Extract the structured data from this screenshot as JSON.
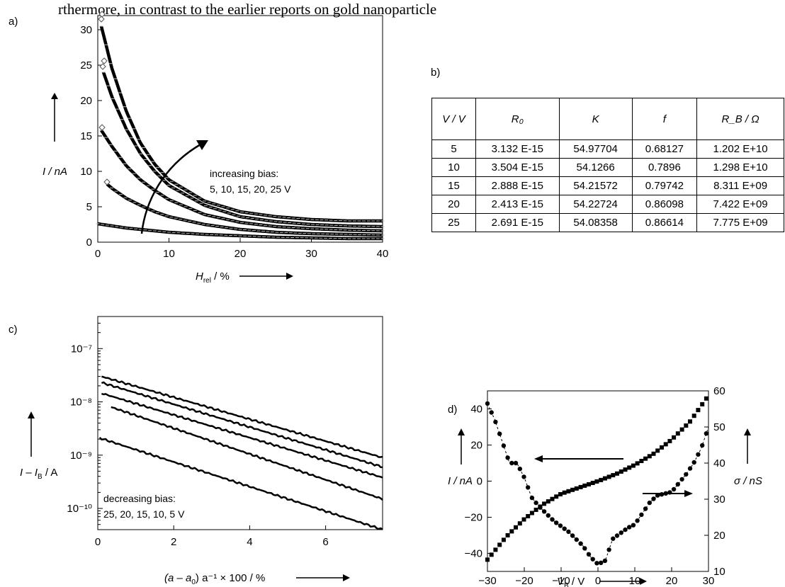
{
  "caption_fragment": "rthermore, in contrast to the earlier reports on gold nanoparticle",
  "panels": {
    "a": {
      "label": "a)",
      "annotation_line1": "increasing bias:",
      "annotation_line2": "5, 10, 15, 20, 25 V",
      "ylabel": "I / nA",
      "xlabel": "H",
      "xlabel_sub": "rel",
      "xlabel_unit": " / %"
    },
    "b": {
      "label": "b)"
    },
    "c": {
      "label": "c)",
      "annotation_line1": "decreasing bias:",
      "annotation_line2": "25, 20, 15, 10, 5 V",
      "ylabel": "I – I",
      "ylabel_sub": "B",
      "ylabel_unit": " / A",
      "xlabel": "(a – a",
      "xlabel_sub": "0",
      "xlabel_unit": ") a⁻¹ × 100 / %"
    },
    "d": {
      "label": "d)",
      "ylabel_left": "I / nA",
      "ylabel_right": "σ / nS",
      "xlabel": "V",
      "xlabel_sub": "B",
      "xlabel_unit": " / V"
    }
  },
  "table": {
    "headers": [
      "V / V",
      "R₀",
      "K",
      "f",
      "R_B / Ω"
    ],
    "rows": [
      [
        "5",
        "3.132 E-15",
        "54.97704",
        "0.68127",
        "1.202 E+10"
      ],
      [
        "10",
        "3.504 E-15",
        "54.1266",
        "0.7896",
        "1.298 E+10"
      ],
      [
        "15",
        "2.888 E-15",
        "54.21572",
        "0.79742",
        "8.311 E+09"
      ],
      [
        "20",
        "2.413 E-15",
        "54.22724",
        "0.86098",
        "7.422 E+09"
      ],
      [
        "25",
        "2.691 E-15",
        "54.08358",
        "0.86614",
        "7.775 E+09"
      ]
    ]
  },
  "chart_data": [
    {
      "type": "line",
      "panel": "a",
      "xlabel": "Hrel / %",
      "ylabel": "I / nA",
      "xlim": [
        0,
        40
      ],
      "ylim": [
        0,
        32
      ],
      "xticks": [
        0,
        10,
        20,
        30,
        40
      ],
      "yticks": [
        0,
        5,
        10,
        15,
        20,
        25,
        30
      ],
      "series": [
        {
          "x": [
            0.5,
            2,
            4,
            6,
            8,
            10,
            15,
            20,
            25,
            30,
            35,
            40
          ],
          "y": [
            30.5,
            24.5,
            18.5,
            14.0,
            11.0,
            8.8,
            5.8,
            4.3,
            3.6,
            3.2,
            3.0,
            3.0
          ]
        },
        {
          "x": [
            0.8,
            2,
            4,
            6,
            8,
            10,
            15,
            20,
            25,
            30,
            35,
            40
          ],
          "y": [
            24.0,
            20.5,
            16.0,
            12.5,
            10.0,
            8.0,
            5.2,
            3.6,
            2.9,
            2.5,
            2.3,
            2.2
          ]
        },
        {
          "x": [
            0.5,
            2,
            4,
            6,
            8,
            10,
            15,
            20,
            25,
            30,
            35,
            40
          ],
          "y": [
            15.8,
            13.5,
            10.8,
            8.8,
            7.3,
            6.0,
            3.9,
            2.8,
            2.2,
            1.9,
            1.7,
            1.6
          ]
        },
        {
          "x": [
            1.3,
            2,
            4,
            6,
            8,
            10,
            15,
            20,
            25,
            30,
            35,
            40
          ],
          "y": [
            8.2,
            7.6,
            6.2,
            5.2,
            4.3,
            3.6,
            2.5,
            1.8,
            1.4,
            1.2,
            1.1,
            1.0
          ]
        },
        {
          "x": [
            0,
            2,
            4,
            6,
            8,
            10,
            15,
            20,
            25,
            30,
            35,
            40
          ],
          "y": [
            2.6,
            2.3,
            2.0,
            1.8,
            1.6,
            1.4,
            1.1,
            0.9,
            0.7,
            0.6,
            0.5,
            0.5
          ]
        }
      ],
      "markers": [
        {
          "x": 0.5,
          "y": 31.5
        },
        {
          "x": 0.6,
          "y": 32.2
        },
        {
          "x": 0.7,
          "y": 24.8
        },
        {
          "x": 0.9,
          "y": 25.6
        },
        {
          "x": 0.6,
          "y": 16.2
        },
        {
          "x": 1.3,
          "y": 8.5
        }
      ],
      "annotation": "increasing bias: 5, 10, 15, 20, 25 V"
    },
    {
      "type": "line",
      "panel": "c",
      "xlabel": "(a – a0) a⁻¹ × 100 / %",
      "ylabel": "I – IB / A",
      "xlim": [
        0,
        7.5
      ],
      "ylog": true,
      "ylim": [
        4e-11,
        4e-07
      ],
      "xticks": [
        0,
        2,
        4,
        6
      ],
      "yticks": [
        "10⁻¹⁰",
        "10⁻⁹",
        "10⁻⁸",
        "10⁻⁷"
      ],
      "series": [
        {
          "x": [
            0.1,
            7.5
          ],
          "y": [
            3e-08,
            9e-10
          ]
        },
        {
          "x": [
            0.1,
            7.5
          ],
          "y": [
            2.3e-08,
            6e-10
          ]
        },
        {
          "x": [
            0.1,
            7.5
          ],
          "y": [
            1.45e-08,
            3.8e-10
          ]
        },
        {
          "x": [
            0.35,
            7.5
          ],
          "y": [
            8e-09,
            1.5e-10
          ]
        },
        {
          "x": [
            0.05,
            7.5
          ],
          "y": [
            2.1e-09,
            4e-11
          ]
        }
      ],
      "annotation": "decreasing bias: 25, 20, 15, 10, 5 V"
    },
    {
      "type": "scatter",
      "panel": "d",
      "xlabel": "VB / V",
      "ylabel": "I / nA",
      "ylabel_right": "σ / nS",
      "xlim": [
        -30,
        30
      ],
      "ylim": [
        -50,
        50
      ],
      "ylim_right": [
        10,
        60
      ],
      "xticks": [
        -30,
        -20,
        -10,
        0,
        10,
        20,
        30
      ],
      "yticks": [
        -40,
        -20,
        0,
        20,
        40
      ],
      "yticks_right": [
        10,
        20,
        30,
        40,
        50,
        60
      ],
      "series": [
        {
          "marker": "square",
          "axis": "left",
          "x": [
            -30,
            -25,
            -20,
            -15,
            -10,
            -5,
            0,
            5,
            10,
            15,
            20,
            25,
            30
          ],
          "y": [
            -43.5,
            -31,
            -21,
            -13,
            -7,
            -3.5,
            0,
            4,
            9,
            15,
            23,
            33,
            47.5
          ]
        },
        {
          "marker": "circle",
          "axis": "right",
          "x": [
            -30,
            -28,
            -26,
            -24,
            -22,
            -20,
            -18,
            -16,
            -14,
            -12,
            -10,
            -8,
            -6,
            -4,
            -2,
            0,
            2,
            4,
            6,
            8,
            10,
            12,
            14,
            16,
            18,
            20,
            22,
            24,
            26,
            28,
            30
          ],
          "y": [
            56.5,
            52,
            46,
            40,
            40,
            36,
            30.5,
            28,
            26,
            24,
            22.5,
            21,
            19,
            17,
            14,
            12,
            13,
            19,
            20.5,
            22,
            23,
            26,
            29,
            31,
            31.5,
            32,
            34.5,
            37,
            40,
            44,
            50
          ]
        }
      ]
    }
  ]
}
